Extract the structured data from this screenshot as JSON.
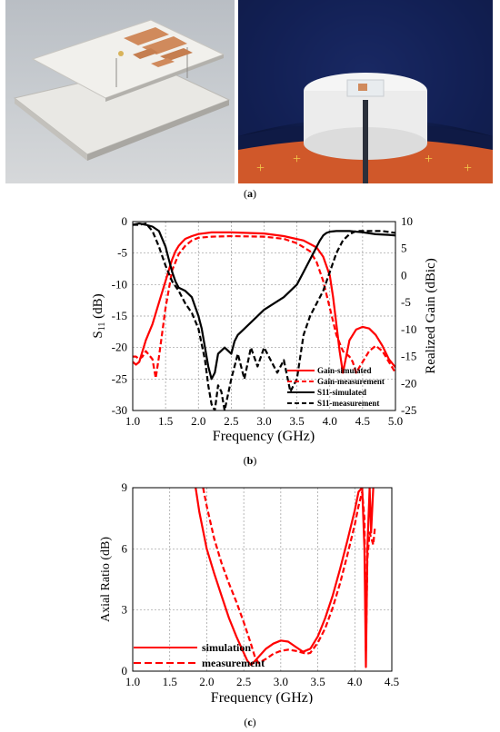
{
  "captions": {
    "a": "a",
    "b": "b",
    "c": "c"
  },
  "chart_data": [
    {
      "type": "line",
      "panel": "b",
      "xlabel": "Frequency (GHz)",
      "ylabel_left": "S",
      "ylabel_left_sub": "11",
      "ylabel_left_unit": " (dB)",
      "ylabel_right": "Realized Gain (dBic)",
      "xlim": [
        1.0,
        5.0
      ],
      "ylim_left": [
        -30,
        0
      ],
      "ylim_right": [
        -25,
        10
      ],
      "xticks": [
        "1.0",
        "1.5",
        "2.0",
        "2.5",
        "3.0",
        "3.5",
        "4.0",
        "4.5",
        "5.0"
      ],
      "yticks_left": [
        "0",
        "-5",
        "-10",
        "-15",
        "-20",
        "-25",
        "-30"
      ],
      "yticks_right": [
        "10",
        "5",
        "0",
        "-5",
        "-10",
        "-15",
        "-20",
        "-25"
      ],
      "grid": true,
      "legend_position": "lower-right",
      "series": [
        {
          "name": "Gain-simulated",
          "axis": "right",
          "color": "#ff0000",
          "dash": false,
          "x": [
            1.0,
            1.05,
            1.1,
            1.15,
            1.2,
            1.3,
            1.4,
            1.5,
            1.55,
            1.6,
            1.65,
            1.7,
            1.75,
            1.8,
            1.9,
            2.0,
            2.2,
            2.5,
            3.0,
            3.3,
            3.6,
            3.8,
            3.9,
            4.0,
            4.05,
            4.1,
            4.15,
            4.2,
            4.25,
            4.3,
            4.4,
            4.5,
            4.6,
            4.7,
            4.8,
            4.9,
            5.0
          ],
          "y": [
            -16,
            -16.5,
            -16,
            -14,
            -12,
            -9,
            -5,
            -1,
            1,
            3,
            4.5,
            5.5,
            6.2,
            6.8,
            7.3,
            7.7,
            8,
            8,
            7.8,
            7.3,
            6.5,
            5.2,
            3.5,
            0,
            -4,
            -9,
            -14,
            -18,
            -15,
            -12,
            -10,
            -9.5,
            -9.8,
            -11,
            -13,
            -15.5,
            -17
          ]
        },
        {
          "name": "Gain-measurement",
          "axis": "right",
          "color": "#ff0000",
          "dash": true,
          "x": [
            1.0,
            1.05,
            1.1,
            1.15,
            1.2,
            1.3,
            1.35,
            1.4,
            1.5,
            1.6,
            1.7,
            1.8,
            1.9,
            2.0,
            2.2,
            2.5,
            3.0,
            3.3,
            3.5,
            3.7,
            3.8,
            3.9,
            4.0,
            4.1,
            4.2,
            4.3,
            4.35,
            4.4,
            4.5,
            4.6,
            4.7,
            4.8,
            4.9,
            5.0
          ],
          "y": [
            -15,
            -15,
            -15.5,
            -15,
            -14,
            -15.5,
            -19,
            -15,
            -6,
            1,
            4,
            5.5,
            6.5,
            7,
            7.2,
            7.3,
            7.2,
            6.8,
            6,
            4.5,
            2.5,
            -1,
            -6,
            -11,
            -14,
            -15,
            -16,
            -18,
            -16,
            -14,
            -13,
            -14,
            -16,
            -18
          ]
        },
        {
          "name": "S11-simulated",
          "axis": "left",
          "color": "#000000",
          "dash": false,
          "x": [
            1.0,
            1.1,
            1.2,
            1.3,
            1.4,
            1.5,
            1.55,
            1.6,
            1.65,
            1.7,
            1.8,
            1.9,
            2.0,
            2.05,
            2.1,
            2.15,
            2.2,
            2.25,
            2.3,
            2.4,
            2.5,
            2.55,
            2.6,
            2.7,
            3.0,
            3.3,
            3.5,
            3.6,
            3.7,
            3.8,
            3.85,
            3.9,
            3.95,
            4.0,
            4.1,
            4.3,
            4.5,
            4.7,
            4.9,
            5.0
          ],
          "y": [
            -0.5,
            -0.3,
            -0.5,
            -0.8,
            -1.5,
            -4,
            -6,
            -8,
            -9.5,
            -10.5,
            -11,
            -12,
            -15,
            -17,
            -20,
            -23,
            -25,
            -24,
            -21,
            -20,
            -21,
            -19,
            -18,
            -17,
            -14,
            -12,
            -10,
            -8,
            -6,
            -4,
            -3,
            -2.2,
            -1.8,
            -1.6,
            -1.5,
            -1.5,
            -1.7,
            -2,
            -2.1,
            -2.2
          ]
        },
        {
          "name": "S11-measurement",
          "axis": "left",
          "color": "#000000",
          "dash": true,
          "x": [
            1.0,
            1.1,
            1.2,
            1.3,
            1.4,
            1.5,
            1.6,
            1.7,
            1.8,
            1.9,
            2.0,
            2.1,
            2.15,
            2.2,
            2.25,
            2.3,
            2.35,
            2.4,
            2.5,
            2.6,
            2.7,
            2.8,
            2.9,
            3.0,
            3.1,
            3.2,
            3.3,
            3.4,
            3.5,
            3.6,
            3.7,
            3.8,
            3.9,
            4.0,
            4.1,
            4.2,
            4.3,
            4.4,
            4.6,
            4.8,
            5.0
          ],
          "y": [
            -0.5,
            -0.5,
            -0.3,
            -1.5,
            -4,
            -7,
            -9.5,
            -11,
            -13,
            -14.5,
            -17,
            -22,
            -26,
            -29,
            -30,
            -26,
            -27,
            -30,
            -25,
            -21,
            -25,
            -20,
            -23,
            -20,
            -22,
            -24,
            -22,
            -27,
            -25,
            -18,
            -15,
            -13,
            -11,
            -8,
            -5,
            -3,
            -2,
            -1.5,
            -1.5,
            -1.5,
            -1.8
          ]
        }
      ]
    },
    {
      "type": "line",
      "panel": "c",
      "xlabel": "Frequency (GHz)",
      "ylabel": "Axial Ratio (dB)",
      "xlim": [
        1.0,
        4.5
      ],
      "ylim": [
        0,
        9
      ],
      "xticks": [
        "1.0",
        "1.5",
        "2.0",
        "2.5",
        "3.0",
        "3.5",
        "4.0",
        "4.5"
      ],
      "yticks": [
        "9",
        "6",
        "3",
        "0"
      ],
      "grid": true,
      "legend_position": "lower-left",
      "series": [
        {
          "name": "simulation",
          "color": "#ff0000",
          "dash": false,
          "x": [
            1.85,
            1.9,
            2.0,
            2.1,
            2.2,
            2.3,
            2.4,
            2.5,
            2.55,
            2.6,
            2.7,
            2.8,
            2.9,
            3.0,
            3.1,
            3.2,
            3.3,
            3.4,
            3.5,
            3.6,
            3.7,
            3.8,
            3.9,
            4.0,
            4.05,
            4.1,
            4.13,
            4.15,
            4.17,
            4.2,
            4.22,
            4.25
          ],
          "y": [
            9,
            7.8,
            6,
            4.8,
            3.7,
            2.6,
            1.7,
            0.9,
            0.5,
            0.3,
            0.7,
            1.1,
            1.35,
            1.5,
            1.45,
            1.2,
            0.95,
            1.1,
            1.7,
            2.6,
            3.7,
            5,
            6.4,
            7.9,
            8.8,
            9,
            6,
            0.2,
            6,
            9,
            6.8,
            9
          ]
        },
        {
          "name": "measurement",
          "color": "#ff0000",
          "dash": true,
          "x": [
            1.95,
            2.0,
            2.1,
            2.2,
            2.3,
            2.4,
            2.5,
            2.6,
            2.65,
            2.7,
            2.8,
            2.9,
            3.0,
            3.1,
            3.2,
            3.3,
            3.35,
            3.4,
            3.5,
            3.6,
            3.7,
            3.8,
            3.9,
            4.0,
            4.05,
            4.1,
            4.13,
            4.15,
            4.17,
            4.2,
            4.25,
            4.27
          ],
          "y": [
            9,
            8.1,
            6.5,
            5.3,
            4.3,
            3.4,
            2.4,
            1.3,
            0.7,
            0.4,
            0.6,
            0.85,
            1.0,
            1.05,
            1.0,
            0.9,
            0.85,
            0.9,
            1.4,
            2.1,
            3.1,
            4.3,
            5.7,
            7.2,
            8.1,
            8.8,
            7.5,
            1.0,
            5.5,
            6.8,
            6.2,
            7.0
          ]
        }
      ]
    }
  ],
  "colors": {
    "accent": "#ff0000",
    "copper": "#d08a5c",
    "foam": "#f2f2f2",
    "chamber_blue": "#12205a",
    "chamber_orange": "#d0582a"
  }
}
